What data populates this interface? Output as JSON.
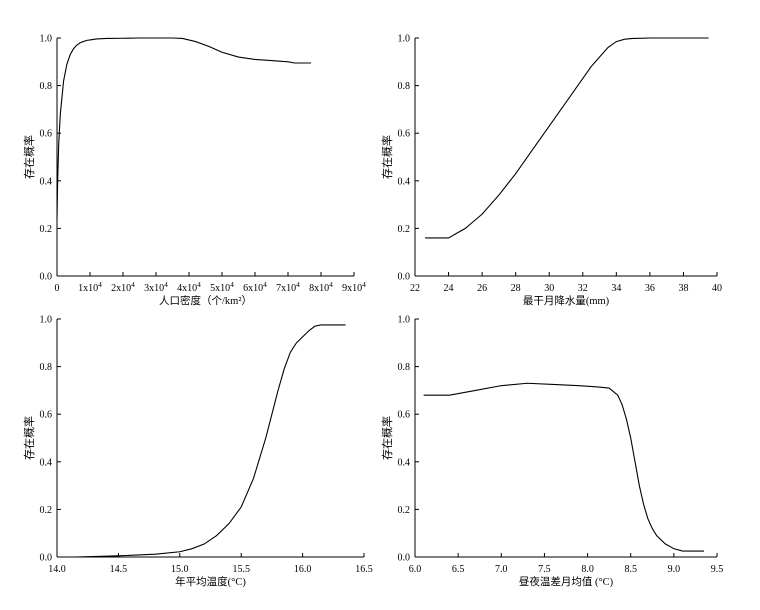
{
  "chart_data": [
    {
      "type": "line",
      "xlabel": "人口密度（个/km²）",
      "ylabel": "存在概率",
      "xlim": [
        0,
        90000
      ],
      "ylim": [
        0,
        1.0
      ],
      "x_ticks": [
        0,
        10000,
        20000,
        30000,
        40000,
        50000,
        60000,
        70000,
        80000,
        90000
      ],
      "x_tick_labels": [
        "0",
        "1x10⁴",
        "2x10⁴",
        "3x10⁴",
        "4x10⁴",
        "5x10⁴",
        "6x10⁴",
        "7x10⁴",
        "8x10⁴",
        "9x10⁴"
      ],
      "y_ticks": [
        0.0,
        0.2,
        0.4,
        0.6,
        0.8,
        1.0
      ],
      "y_tick_labels": [
        "0.0",
        "0.2",
        "0.4",
        "0.6",
        "0.8",
        "1.0"
      ],
      "series": [
        {
          "x": [
            0,
            200,
            500,
            1000,
            2000,
            3000,
            4000,
            5000,
            6000,
            7000,
            8000,
            9000,
            10000,
            11000,
            12000,
            15000,
            20000,
            25000,
            30000,
            35000,
            38000,
            42000,
            46000,
            50000,
            55000,
            60000,
            65000,
            70000,
            72000,
            77000
          ],
          "y": [
            0.24,
            0.4,
            0.55,
            0.68,
            0.82,
            0.89,
            0.93,
            0.955,
            0.97,
            0.98,
            0.985,
            0.99,
            0.992,
            0.994,
            0.996,
            0.998,
            0.999,
            1.0,
            1.0,
            1.0,
            0.998,
            0.985,
            0.965,
            0.94,
            0.92,
            0.91,
            0.905,
            0.9,
            0.895,
            0.895
          ]
        }
      ]
    },
    {
      "type": "line",
      "xlabel": "最干月降水量(mm)",
      "ylabel": "存在概率",
      "xlim": [
        22,
        40
      ],
      "ylim": [
        0,
        1.0
      ],
      "x_ticks": [
        22,
        24,
        26,
        28,
        30,
        32,
        34,
        36,
        38,
        40
      ],
      "x_tick_labels": [
        "22",
        "24",
        "26",
        "28",
        "30",
        "32",
        "34",
        "36",
        "38",
        "40"
      ],
      "y_ticks": [
        0.0,
        0.2,
        0.4,
        0.6,
        0.8,
        1.0
      ],
      "y_tick_labels": [
        "0.0",
        "0.2",
        "0.4",
        "0.6",
        "0.8",
        "1.0"
      ],
      "series": [
        {
          "x": [
            22.6,
            24.0,
            24.5,
            25.0,
            25.5,
            26.0,
            27.0,
            28.0,
            29.0,
            30.0,
            31.0,
            32.0,
            32.5,
            33.0,
            33.5,
            34.0,
            34.5,
            35.0,
            36.0,
            39.5
          ],
          "y": [
            0.16,
            0.16,
            0.18,
            0.2,
            0.23,
            0.26,
            0.34,
            0.43,
            0.53,
            0.63,
            0.73,
            0.83,
            0.88,
            0.92,
            0.96,
            0.985,
            0.995,
            0.998,
            1.0,
            1.0
          ]
        }
      ]
    },
    {
      "type": "line",
      "xlabel": "年平均温度(°C)",
      "ylabel": "存在概率",
      "xlim": [
        14.0,
        16.5
      ],
      "ylim": [
        0,
        1.0
      ],
      "x_ticks": [
        14.0,
        14.5,
        15.0,
        15.5,
        16.0,
        16.5
      ],
      "x_tick_labels": [
        "14.0",
        "14.5",
        "15.0",
        "15.5",
        "16.0",
        "16.5"
      ],
      "y_ticks": [
        0.0,
        0.2,
        0.4,
        0.6,
        0.8,
        1.0
      ],
      "y_tick_labels": [
        "0.0",
        "0.2",
        "0.4",
        "0.6",
        "0.8",
        "1.0"
      ],
      "series": [
        {
          "x": [
            14.15,
            14.5,
            14.8,
            15.0,
            15.1,
            15.2,
            15.3,
            15.4,
            15.5,
            15.6,
            15.7,
            15.75,
            15.8,
            15.85,
            15.9,
            15.95,
            16.0,
            16.05,
            16.1,
            16.15,
            16.35
          ],
          "y": [
            0.0,
            0.005,
            0.012,
            0.022,
            0.035,
            0.055,
            0.09,
            0.14,
            0.21,
            0.33,
            0.5,
            0.6,
            0.7,
            0.79,
            0.86,
            0.9,
            0.925,
            0.95,
            0.97,
            0.975,
            0.975
          ]
        }
      ]
    },
    {
      "type": "line",
      "xlabel": "昼夜温差月均值 (°C)",
      "ylabel": "存在概率",
      "xlim": [
        6.0,
        9.5
      ],
      "ylim": [
        0,
        1.0
      ],
      "x_ticks": [
        6.0,
        6.5,
        7.0,
        7.5,
        8.0,
        8.5,
        9.0,
        9.5
      ],
      "x_tick_labels": [
        "6.0",
        "6.5",
        "7.0",
        "7.5",
        "8.0",
        "8.5",
        "9.0",
        "9.5"
      ],
      "y_ticks": [
        0.0,
        0.2,
        0.4,
        0.6,
        0.8,
        1.0
      ],
      "y_tick_labels": [
        "0.0",
        "0.2",
        "0.4",
        "0.6",
        "0.8",
        "1.0"
      ],
      "series": [
        {
          "x": [
            6.1,
            6.4,
            6.7,
            7.0,
            7.3,
            7.6,
            7.9,
            8.1,
            8.25,
            8.35,
            8.4,
            8.45,
            8.5,
            8.55,
            8.6,
            8.65,
            8.7,
            8.75,
            8.8,
            8.9,
            9.0,
            9.1,
            9.35
          ],
          "y": [
            0.68,
            0.68,
            0.7,
            0.72,
            0.73,
            0.725,
            0.72,
            0.715,
            0.71,
            0.68,
            0.64,
            0.58,
            0.5,
            0.4,
            0.3,
            0.22,
            0.16,
            0.12,
            0.09,
            0.055,
            0.035,
            0.025,
            0.025
          ]
        }
      ]
    }
  ]
}
